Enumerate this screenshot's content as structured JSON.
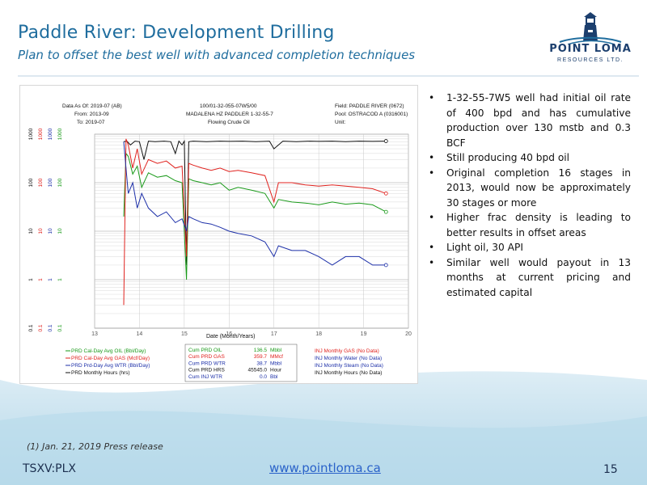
{
  "slide": {
    "title": "Paddle River: Development Drilling",
    "subtitle": "Plan to offset the best well with advanced completion techniques",
    "logo_name": "POINT LOMA",
    "logo_sub": "RESOURCES LTD.",
    "footnote": "(1) Jan. 21, 2019 Press release",
    "ticker": "TSXV:PLX",
    "url": "www.pointloma.ca",
    "page_number": "15"
  },
  "bullets": [
    "1-32-55-7W5 well had initial oil rate of 400 bpd and has cumulative production over 130 mstb and 0.3 BCF",
    "Still producing 40 bpd oil",
    "Original completion 16 stages in 2013, would now be approximately 30 stages or more",
    "Higher frac density is leading to better results in offset areas",
    "Light oil, 30 API",
    "Similar well would payout in 13 months at current pricing and estimated capital"
  ],
  "chart_header": {
    "data_as_of": "Data As Of: 2019-07 (AB)",
    "from": "From: 2013-09",
    "to": "To: 2019-07",
    "well_id": "100/01-32-055-07W5/00",
    "well_name": "MADALENA HZ PADDLER 1-32-55-7",
    "fluid": "Flowing Crude Oil",
    "field": "Field: PADDLE RIVER (0672)",
    "pool": "Pool: OSTRACOD A (0316001)",
    "unit": "Unit:"
  },
  "chart_legend": {
    "series": [
      {
        "name": "PRD Cal-Day Avg OIL (Bbl/Day)",
        "color": "#1a9a1a"
      },
      {
        "name": "PRD Cal-Day Avg GAS (Mcf/Day)",
        "color": "#e0221e"
      },
      {
        "name": "PRD Prd-Day Avg WTR (Bbl/Day)",
        "color": "#1c2fa8"
      },
      {
        "name": "PRD Monthly Hours (hrs)",
        "color": "#111111"
      }
    ],
    "cumulatives": [
      {
        "label": "Cum PRD OIL",
        "value": "136.5",
        "unit": "Mbbl",
        "color": "#1a9a1a"
      },
      {
        "label": "Cum PRD GAS",
        "value": "359.7",
        "unit": "MMcf",
        "color": "#e0221e"
      },
      {
        "label": "Cum PRD WTR",
        "value": "38.7",
        "unit": "Mbbl",
        "color": "#1c2fa8"
      },
      {
        "label": "Cum PRD HRS",
        "value": "45545.0",
        "unit": "Hour",
        "color": "#111111"
      },
      {
        "label": "Cum INJ WTR",
        "value": "0.0",
        "unit": "Bbl",
        "color": "#1c2fa8"
      }
    ],
    "injection": [
      {
        "label": "INJ Monthly GAS (No Data)",
        "color": "#e0221e"
      },
      {
        "label": "INJ Monthly Water (No Data)",
        "color": "#1c2fa8"
      },
      {
        "label": "INJ Monthly Steam (No Data)",
        "color": "#1c2fa8"
      },
      {
        "label": "INJ Monthly Hours (No Data)",
        "color": "#111111"
      }
    ]
  },
  "chart_data": {
    "type": "line",
    "xlabel": "Date (Month/Years)",
    "ylabel": "",
    "x_ticks": [
      "13",
      "14",
      "15",
      "16",
      "17",
      "18",
      "19",
      "20"
    ],
    "xlim": [
      13,
      20
    ],
    "y_scale": "log",
    "ylim": [
      0.1,
      1000
    ],
    "y_axes": [
      {
        "color": "#111111",
        "ticks": [
          "0.1",
          "1",
          "10",
          "100",
          "1000"
        ]
      },
      {
        "color": "#e0221e",
        "ticks": [
          "0.1",
          "1",
          "10",
          "100",
          "1000"
        ]
      },
      {
        "color": "#1c2fa8",
        "ticks": [
          "0.1",
          "1",
          "10",
          "100",
          "1000"
        ]
      },
      {
        "color": "#1a9a1a",
        "ticks": [
          "0.1",
          "1",
          "10",
          "100",
          "1000"
        ]
      }
    ],
    "grid": true,
    "series": [
      {
        "name": "PRD Monthly Hours (hrs)",
        "color": "#111111",
        "x": [
          13.65,
          13.72,
          13.8,
          13.9,
          14.0,
          14.1,
          14.2,
          14.35,
          14.55,
          14.7,
          14.8,
          14.88,
          14.95,
          15.0,
          15.05,
          15.1,
          15.2,
          15.5,
          15.8,
          16.0,
          16.3,
          16.6,
          16.9,
          17.0,
          17.2,
          17.5,
          17.8,
          18.0,
          18.3,
          18.6,
          18.9,
          19.2,
          19.5
        ],
        "y": [
          700,
          720,
          600,
          720,
          700,
          300,
          720,
          700,
          720,
          700,
          400,
          720,
          600,
          720,
          2,
          700,
          720,
          700,
          720,
          710,
          720,
          700,
          720,
          500,
          720,
          700,
          720,
          710,
          720,
          700,
          720,
          710,
          720
        ]
      },
      {
        "name": "PRD Cal-Day Avg OIL (Bbl/Day)",
        "color": "#1a9a1a",
        "x": [
          13.65,
          13.7,
          13.75,
          13.85,
          13.95,
          14.05,
          14.2,
          14.4,
          14.6,
          14.8,
          14.95,
          15.05,
          15.1,
          15.2,
          15.4,
          15.6,
          15.8,
          16.0,
          16.2,
          16.5,
          16.8,
          17.0,
          17.1,
          17.4,
          17.7,
          18.0,
          18.3,
          18.6,
          18.9,
          19.2,
          19.5
        ],
        "y": [
          20,
          400,
          350,
          150,
          220,
          80,
          160,
          130,
          140,
          110,
          100,
          1,
          120,
          110,
          100,
          90,
          100,
          70,
          80,
          70,
          60,
          30,
          45,
          40,
          38,
          35,
          40,
          36,
          38,
          35,
          25
        ]
      },
      {
        "name": "PRD Cal-Day Avg GAS (Mcf/Day)",
        "color": "#e0221e",
        "x": [
          13.65,
          13.7,
          13.75,
          13.85,
          13.95,
          14.05,
          14.2,
          14.4,
          14.6,
          14.8,
          14.95,
          15.05,
          15.1,
          15.2,
          15.4,
          15.6,
          15.8,
          16.0,
          16.2,
          16.5,
          16.8,
          17.0,
          17.1,
          17.4,
          17.7,
          18.0,
          18.3,
          18.6,
          18.9,
          19.2,
          19.5
        ],
        "y": [
          0.3,
          800,
          600,
          200,
          500,
          150,
          300,
          250,
          280,
          200,
          220,
          3,
          250,
          230,
          200,
          180,
          200,
          170,
          180,
          160,
          140,
          40,
          100,
          100,
          90,
          85,
          90,
          85,
          80,
          75,
          60
        ]
      },
      {
        "name": "PRD Prd-Day Avg WTR (Bbl/Day)",
        "color": "#1c2fa8",
        "x": [
          13.65,
          13.7,
          13.75,
          13.85,
          13.95,
          14.05,
          14.2,
          14.4,
          14.6,
          14.8,
          14.95,
          15.05,
          15.1,
          15.2,
          15.4,
          15.6,
          15.8,
          16.0,
          16.2,
          16.5,
          16.8,
          17.0,
          17.1,
          17.4,
          17.7,
          18.0,
          18.3,
          18.6,
          18.9,
          19.2,
          19.5
        ],
        "y": [
          700,
          200,
          60,
          100,
          30,
          60,
          30,
          20,
          25,
          15,
          18,
          10,
          20,
          18,
          15,
          14,
          12,
          10,
          9,
          8,
          6,
          3,
          5,
          4,
          4,
          3,
          2,
          3,
          3,
          2,
          2
        ]
      }
    ]
  }
}
